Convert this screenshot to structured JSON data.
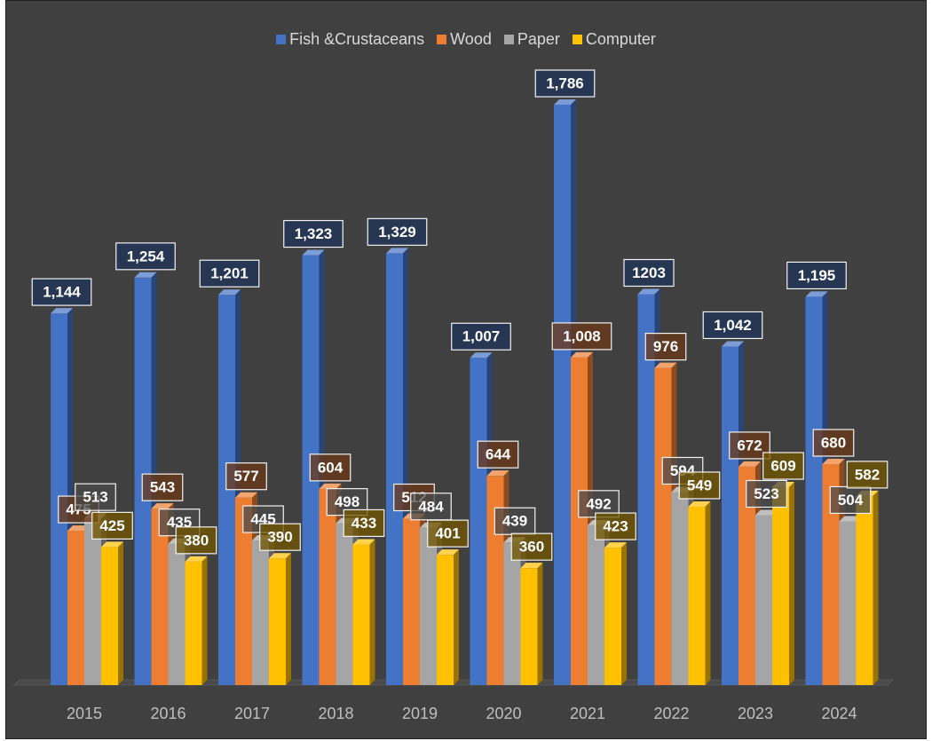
{
  "chart_data": {
    "type": "bar3d",
    "categories": [
      "2015",
      "2016",
      "2017",
      "2018",
      "2019",
      "2020",
      "2021",
      "2022",
      "2023",
      "2024"
    ],
    "series": [
      {
        "name": "Fish &Crustaceans",
        "color": "#4472c4",
        "values": [
          1144,
          1254,
          1201,
          1323,
          1329,
          1007,
          1786,
          1203,
          1042,
          1195
        ],
        "value_labels": [
          "1,144",
          "1,254",
          "1,201",
          "1,323",
          "1,329",
          "1,007",
          "1,786",
          "1203",
          "1,042",
          "1,195"
        ]
      },
      {
        "name": "Wood",
        "color": "#ed7d31",
        "values": [
          475,
          543,
          577,
          604,
          512,
          644,
          1008,
          976,
          672,
          680
        ],
        "value_labels": [
          "475",
          "543",
          "577",
          "604",
          "512",
          "644",
          "1,008",
          "976",
          "672",
          "680"
        ]
      },
      {
        "name": "Paper",
        "color": "#a5a5a5",
        "values": [
          513,
          435,
          445,
          498,
          484,
          439,
          492,
          594,
          523,
          504
        ],
        "value_labels": [
          "513",
          "435",
          "445",
          "498",
          "484",
          "439",
          "492",
          "594",
          "523",
          "504"
        ]
      },
      {
        "name": "Computer",
        "color": "#ffc000",
        "values": [
          425,
          380,
          390,
          433,
          401,
          360,
          423,
          549,
          609,
          582
        ],
        "value_labels": [
          "425",
          "380",
          "390",
          "433",
          "401",
          "360",
          "423",
          "549",
          "609",
          "582"
        ]
      }
    ],
    "legend": "top"
  }
}
